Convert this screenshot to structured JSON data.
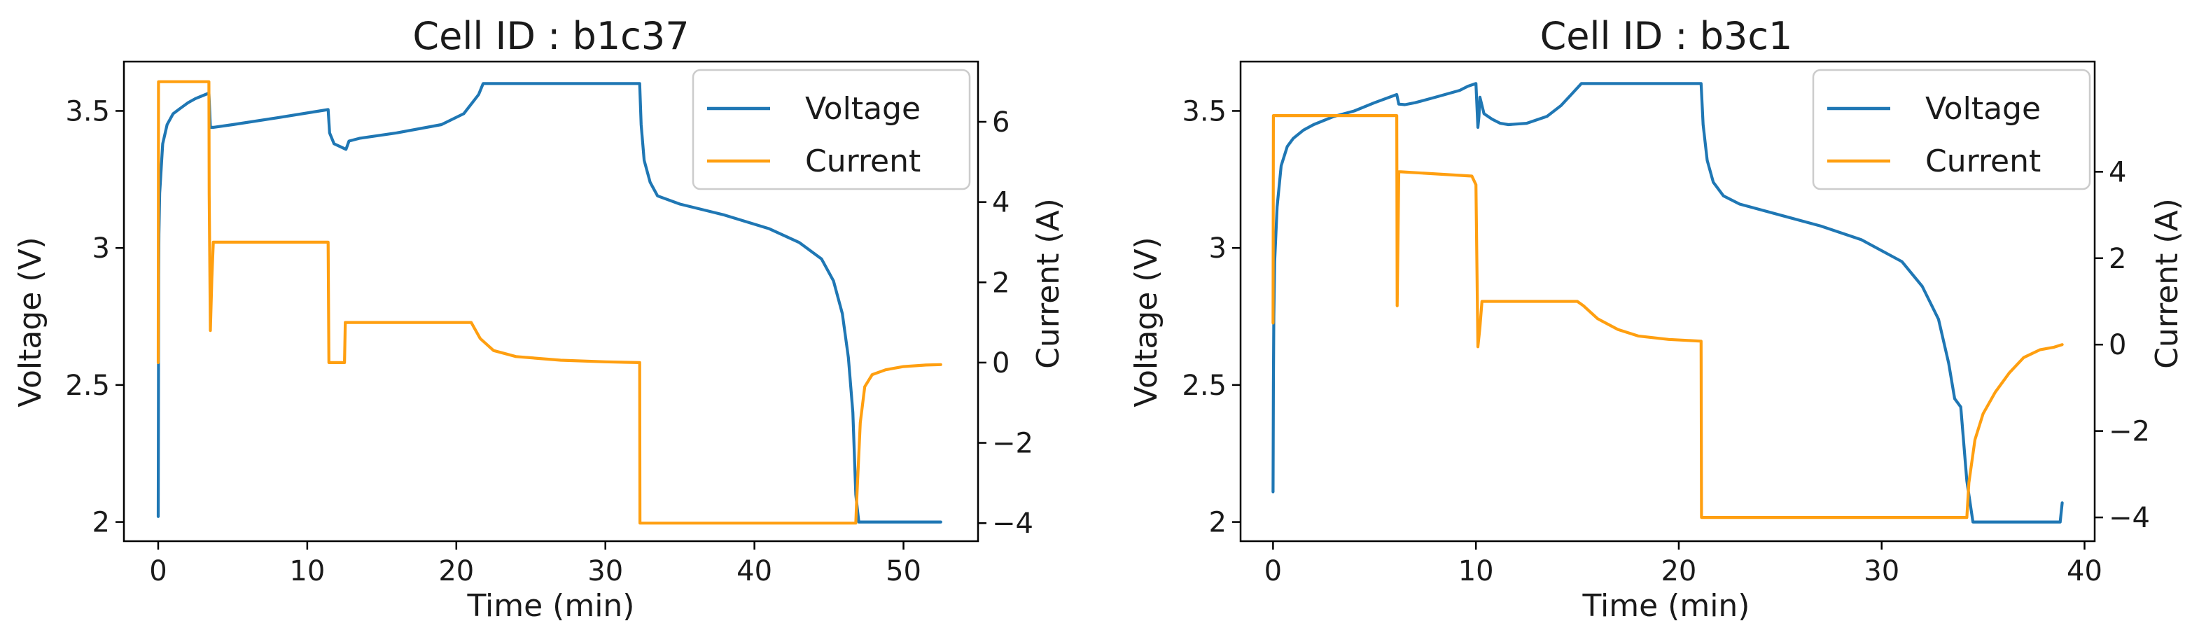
{
  "colors": {
    "voltage": "#1f77b4",
    "current": "#ff9f10"
  },
  "chart_data": [
    {
      "type": "line",
      "title": "Cell ID : b1c37",
      "xlabel": "Time (min)",
      "ylabel": "Voltage (V)",
      "y2label": "Current (A)",
      "xlim": [
        -2.3,
        55
      ],
      "ylim": [
        1.93,
        3.68
      ],
      "y2lim": [
        -4.45,
        7.5
      ],
      "xticks": [
        0,
        10,
        20,
        30,
        40,
        50
      ],
      "yticks": [
        2.0,
        2.5,
        3.0,
        3.5
      ],
      "y2ticks": [
        -4,
        -2,
        0,
        2,
        4,
        6
      ],
      "legend": {
        "location": "top-right",
        "entries": [
          "Voltage",
          "Current"
        ]
      },
      "series": [
        {
          "name": "Voltage",
          "axis": "left",
          "x": [
            0,
            0.02,
            0.03,
            0.05,
            0.1,
            0.3,
            0.6,
            1.0,
            1.5,
            2.0,
            2.5,
            3.0,
            3.4,
            3.5,
            3.7,
            5,
            8,
            11.4,
            11.5,
            11.8,
            12.2,
            12.6,
            12.8,
            13.5,
            16,
            19,
            20.5,
            21.5,
            21.8,
            32.3,
            32.4,
            32.6,
            33,
            33.5,
            35,
            38,
            41,
            43,
            44.5,
            45.3,
            45.9,
            46.3,
            46.6,
            46.8,
            47,
            52.5
          ],
          "values": [
            2.02,
            2.57,
            2.9,
            3.05,
            3.2,
            3.38,
            3.45,
            3.49,
            3.51,
            3.53,
            3.545,
            3.556,
            3.565,
            3.44,
            3.44,
            3.45,
            3.475,
            3.505,
            3.42,
            3.38,
            3.37,
            3.36,
            3.39,
            3.4,
            3.42,
            3.45,
            3.49,
            3.56,
            3.6,
            3.6,
            3.45,
            3.32,
            3.24,
            3.19,
            3.16,
            3.12,
            3.07,
            3.02,
            2.96,
            2.88,
            2.76,
            2.6,
            2.4,
            2.1,
            2.0,
            2.0
          ]
        },
        {
          "name": "Current",
          "axis": "right",
          "x": [
            0,
            0.02,
            3.4,
            3.42,
            3.5,
            3.6,
            3.7,
            11.4,
            11.45,
            12.5,
            12.55,
            20.5,
            21,
            21.6,
            22.5,
            24,
            27,
            30,
            32.3,
            32.32,
            46.8,
            46.85,
            47.1,
            47.4,
            47.9,
            48.8,
            50,
            51.5,
            52.5
          ],
          "values": [
            0,
            7,
            7,
            4.2,
            0.8,
            2.1,
            3,
            3,
            0,
            0,
            1,
            1,
            1,
            0.6,
            0.3,
            0.15,
            0.06,
            0.02,
            0,
            -4,
            -4,
            -3.5,
            -1.5,
            -0.6,
            -0.3,
            -0.18,
            -0.1,
            -0.06,
            -0.05
          ]
        }
      ]
    },
    {
      "type": "line",
      "title": "Cell ID : b3c1",
      "xlabel": "Time (min)",
      "ylabel": "Voltage (V)",
      "y2label": "Current (A)",
      "xlim": [
        -1.6,
        40.5
      ],
      "ylim": [
        1.93,
        3.68
      ],
      "y2lim": [
        -4.55,
        6.55
      ],
      "xticks": [
        0,
        10,
        20,
        30,
        40
      ],
      "yticks": [
        2.0,
        2.5,
        3.0,
        3.5
      ],
      "y2ticks": [
        -4,
        -2,
        0,
        2,
        4
      ],
      "legend": {
        "location": "top-right",
        "entries": [
          "Voltage",
          "Current"
        ]
      },
      "series": [
        {
          "name": "Voltage",
          "axis": "left",
          "x": [
            0,
            0.02,
            0.04,
            0.08,
            0.2,
            0.4,
            0.7,
            1.0,
            1.5,
            2,
            3,
            4,
            5,
            6.1,
            6.2,
            6.5,
            7,
            8,
            9.2,
            9.6,
            10.0,
            10.1,
            10.15,
            10.2,
            10.4,
            10.8,
            11.2,
            11.6,
            12.5,
            13.5,
            14.2,
            14.7,
            15.2,
            15.5,
            21.1,
            21.2,
            21.4,
            21.7,
            22.2,
            23,
            25,
            27,
            29,
            31,
            32,
            32.8,
            33.3,
            33.6,
            33.9,
            34.2,
            34.5,
            38.8,
            38.9
          ],
          "values": [
            2.11,
            2.5,
            2.75,
            2.95,
            3.15,
            3.3,
            3.37,
            3.4,
            3.43,
            3.45,
            3.48,
            3.5,
            3.53,
            3.56,
            3.525,
            3.523,
            3.53,
            3.55,
            3.575,
            3.59,
            3.6,
            3.44,
            3.48,
            3.55,
            3.49,
            3.47,
            3.455,
            3.45,
            3.455,
            3.48,
            3.52,
            3.56,
            3.6,
            3.6,
            3.6,
            3.45,
            3.32,
            3.24,
            3.19,
            3.16,
            3.12,
            3.08,
            3.03,
            2.95,
            2.86,
            2.74,
            2.58,
            2.45,
            2.42,
            2.15,
            2.0,
            2.0,
            2.07
          ]
        },
        {
          "name": "Current",
          "axis": "right",
          "x": [
            0,
            0.02,
            6.1,
            6.12,
            6.2,
            6.3,
            9.8,
            10.0,
            10.1,
            10.2,
            10.3,
            15.0,
            15.3,
            16,
            17,
            18,
            19.5,
            21.1,
            21.12,
            34.2,
            34.3,
            34.6,
            35,
            35.6,
            36.3,
            37,
            37.8,
            38.5,
            38.9
          ],
          "values": [
            0.5,
            5.3,
            5.3,
            0.9,
            4,
            4,
            3.9,
            3.7,
            -0.05,
            0.4,
            1,
            1,
            0.9,
            0.6,
            0.35,
            0.2,
            0.12,
            0.08,
            -4,
            -4,
            -3.2,
            -2.2,
            -1.6,
            -1.1,
            -0.65,
            -0.3,
            -0.12,
            -0.06,
            0
          ]
        }
      ]
    }
  ]
}
